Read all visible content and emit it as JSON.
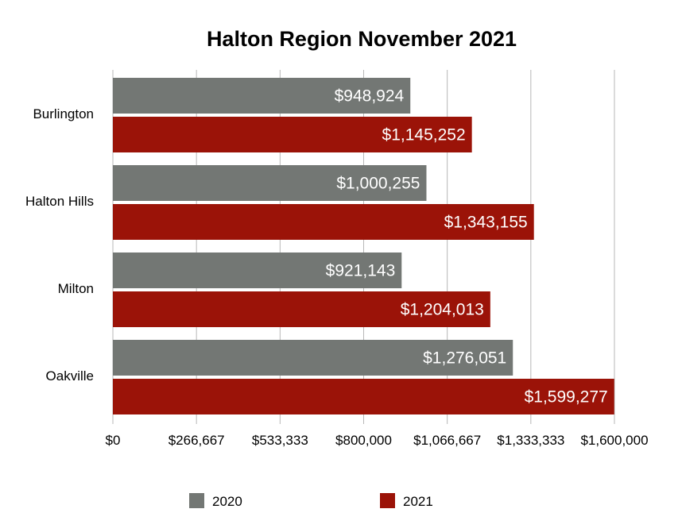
{
  "chart_data": {
    "type": "bar",
    "orientation": "horizontal",
    "title": "Halton Region November 2021",
    "categories": [
      "Burlington",
      "Halton Hills",
      "Milton",
      "Oakville"
    ],
    "series": [
      {
        "name": "2020",
        "color": "#737774",
        "values": [
          948924,
          1000255,
          921143,
          1276051
        ],
        "labels": [
          "$948,924",
          "$1,000,255",
          "$921,143",
          "$1,276,051"
        ]
      },
      {
        "name": "2021",
        "color": "#9b1308",
        "values": [
          1145252,
          1343155,
          1204013,
          1599277
        ],
        "labels": [
          "$1,145,252",
          "$1,343,155",
          "$1,204,013",
          "$1,599,277"
        ]
      }
    ],
    "xlim": [
      0,
      1600000
    ],
    "ticks": [
      0,
      266667,
      533333,
      800000,
      1066667,
      1333333,
      1600000
    ],
    "tick_labels": [
      "$0",
      "$266,667",
      "$533,333",
      "$800,000",
      "$1,066,667",
      "$1,333,333",
      "$1,600,000"
    ],
    "grid": true,
    "grid_color": "#b7b7b7",
    "legend_position": "bottom"
  }
}
